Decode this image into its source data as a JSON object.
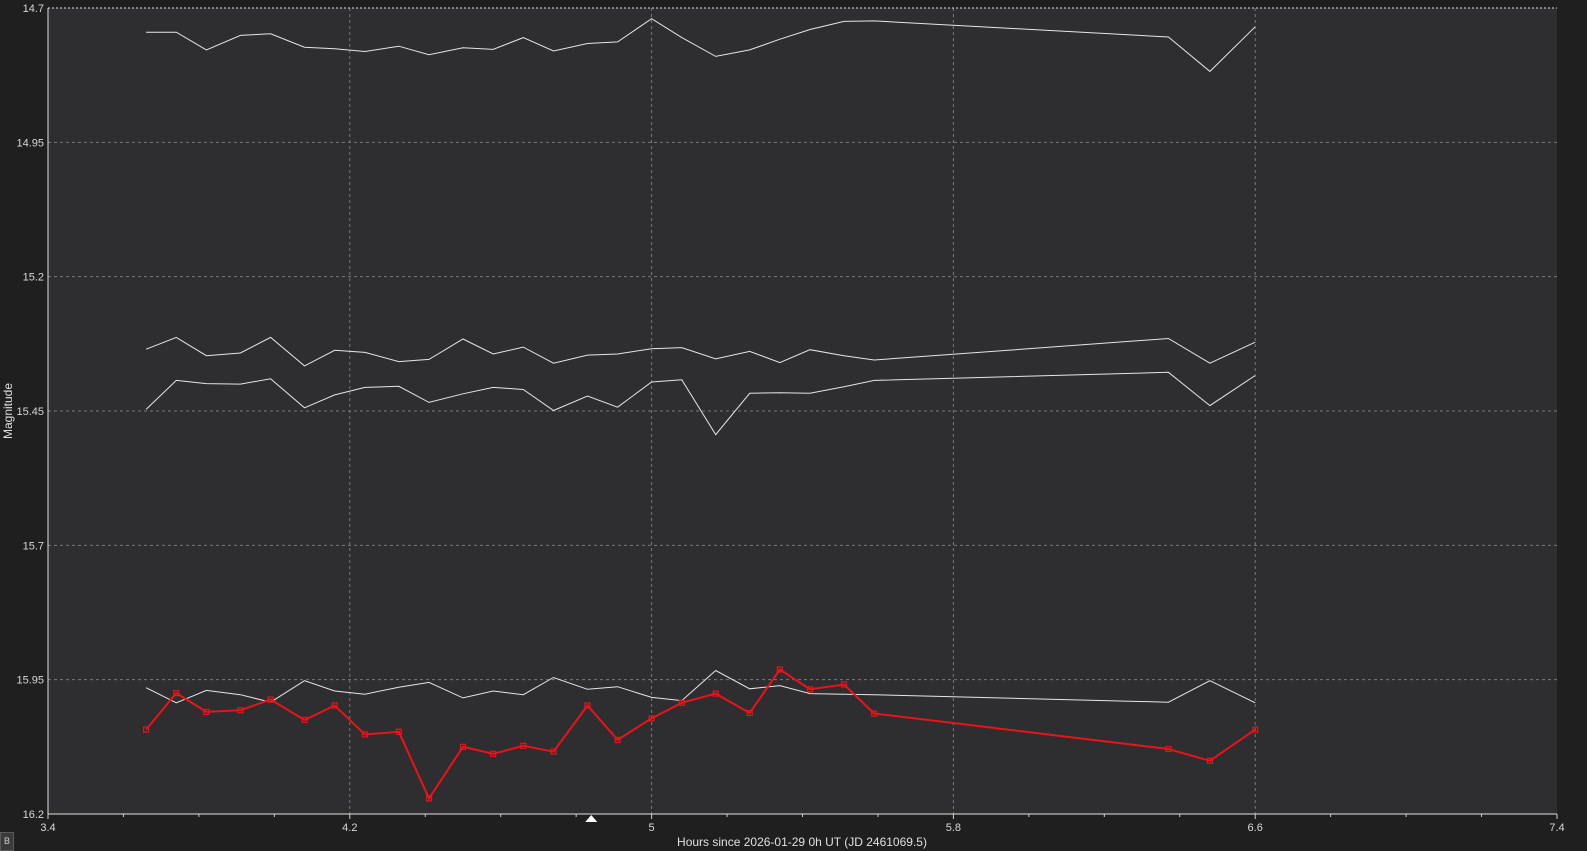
{
  "chart_data": {
    "type": "line",
    "xlabel": "Hours since 2026-01-29 0h UT (JD 2461069.5)",
    "ylabel": "Magnitude",
    "xlim": [
      3.4,
      7.4
    ],
    "ylim": [
      16.2,
      14.7
    ],
    "y_inverted": true,
    "x_ticks": [
      "3.4",
      "4.2",
      "5",
      "5.8",
      "6.6",
      "7.4"
    ],
    "y_ticks": [
      "14.7",
      "14.95",
      "15.2",
      "15.45",
      "15.7",
      "15.95",
      "16.2"
    ],
    "grid": true,
    "marker_x": 4.84,
    "colors": {
      "background": "#1f1f1f",
      "plot_background": "#2e2e30",
      "comparison_series": "#e6e6e6",
      "target_series": "#e8141a"
    },
    "series": [
      {
        "style": "comparison",
        "x": [
          3.66,
          3.74,
          3.82,
          3.91,
          3.99,
          4.08,
          4.16,
          4.24,
          4.33,
          4.41,
          4.5,
          4.58,
          4.66,
          4.74,
          4.83,
          4.91,
          5.0,
          5.08,
          5.17,
          5.26,
          5.34,
          5.42,
          5.51,
          5.59,
          6.37,
          6.48,
          6.6
        ],
        "y": [
          14.745,
          14.745,
          14.778,
          14.751,
          14.748,
          14.773,
          14.776,
          14.781,
          14.771,
          14.787,
          14.774,
          14.777,
          14.755,
          14.78,
          14.766,
          14.763,
          14.72,
          14.755,
          14.79,
          14.778,
          14.758,
          14.74,
          14.725,
          14.724,
          14.754,
          14.818,
          14.735
        ]
      },
      {
        "style": "comparison",
        "x": [
          3.66,
          3.74,
          3.82,
          3.91,
          3.99,
          4.08,
          4.16,
          4.24,
          4.33,
          4.41,
          4.5,
          4.58,
          4.66,
          4.74,
          4.83,
          4.91,
          5.0,
          5.08,
          5.17,
          5.26,
          5.34,
          5.42,
          5.51,
          5.59,
          6.37,
          6.48,
          6.6
        ],
        "y": [
          15.335,
          15.313,
          15.347,
          15.342,
          15.313,
          15.366,
          15.337,
          15.341,
          15.358,
          15.354,
          15.316,
          15.344,
          15.331,
          15.361,
          15.346,
          15.344,
          15.334,
          15.332,
          15.353,
          15.339,
          15.36,
          15.336,
          15.347,
          15.355,
          15.315,
          15.361,
          15.322
        ]
      },
      {
        "style": "comparison",
        "x": [
          3.66,
          3.74,
          3.82,
          3.91,
          3.99,
          4.08,
          4.16,
          4.24,
          4.33,
          4.41,
          4.5,
          4.58,
          4.66,
          4.74,
          4.83,
          4.91,
          5.0,
          5.08,
          5.17,
          5.26,
          5.34,
          5.42,
          5.51,
          5.59,
          6.37,
          6.48,
          6.6
        ],
        "y": [
          15.447,
          15.393,
          15.399,
          15.4,
          15.39,
          15.444,
          15.42,
          15.406,
          15.404,
          15.434,
          15.418,
          15.406,
          15.41,
          15.449,
          15.422,
          15.443,
          15.396,
          15.392,
          15.494,
          15.417,
          15.416,
          15.417,
          15.405,
          15.393,
          15.378,
          15.44,
          15.384
        ]
      },
      {
        "style": "comparison",
        "x": [
          3.66,
          3.74,
          3.82,
          3.91,
          3.99,
          4.08,
          4.16,
          4.24,
          4.33,
          4.41,
          4.5,
          4.58,
          4.66,
          4.74,
          4.83,
          4.91,
          5.0,
          5.08,
          5.17,
          5.26,
          5.34,
          5.42,
          5.51,
          5.59,
          6.37,
          6.48,
          6.6
        ],
        "y": [
          15.965,
          15.993,
          15.97,
          15.978,
          15.992,
          15.952,
          15.971,
          15.977,
          15.964,
          15.955,
          15.984,
          15.971,
          15.978,
          15.946,
          15.968,
          15.963,
          15.983,
          15.989,
          15.933,
          15.967,
          15.961,
          15.976,
          15.977,
          15.978,
          15.992,
          15.952,
          15.993
        ]
      },
      {
        "style": "target",
        "x": [
          3.66,
          3.74,
          3.82,
          3.91,
          3.99,
          4.08,
          4.16,
          4.24,
          4.33,
          4.41,
          4.5,
          4.58,
          4.66,
          4.74,
          4.83,
          4.91,
          5.0,
          5.08,
          5.17,
          5.26,
          5.34,
          5.42,
          5.51,
          5.59,
          6.37,
          6.48,
          6.6
        ],
        "y": [
          16.043,
          15.975,
          16.01,
          16.007,
          15.987,
          16.025,
          15.998,
          16.052,
          16.047,
          16.171,
          16.075,
          16.088,
          16.073,
          16.084,
          15.998,
          16.062,
          16.022,
          15.993,
          15.976,
          16.012,
          15.931,
          15.968,
          15.959,
          16.013,
          16.079,
          16.101,
          16.043
        ]
      }
    ]
  },
  "ui": {
    "corner_label": "B"
  }
}
